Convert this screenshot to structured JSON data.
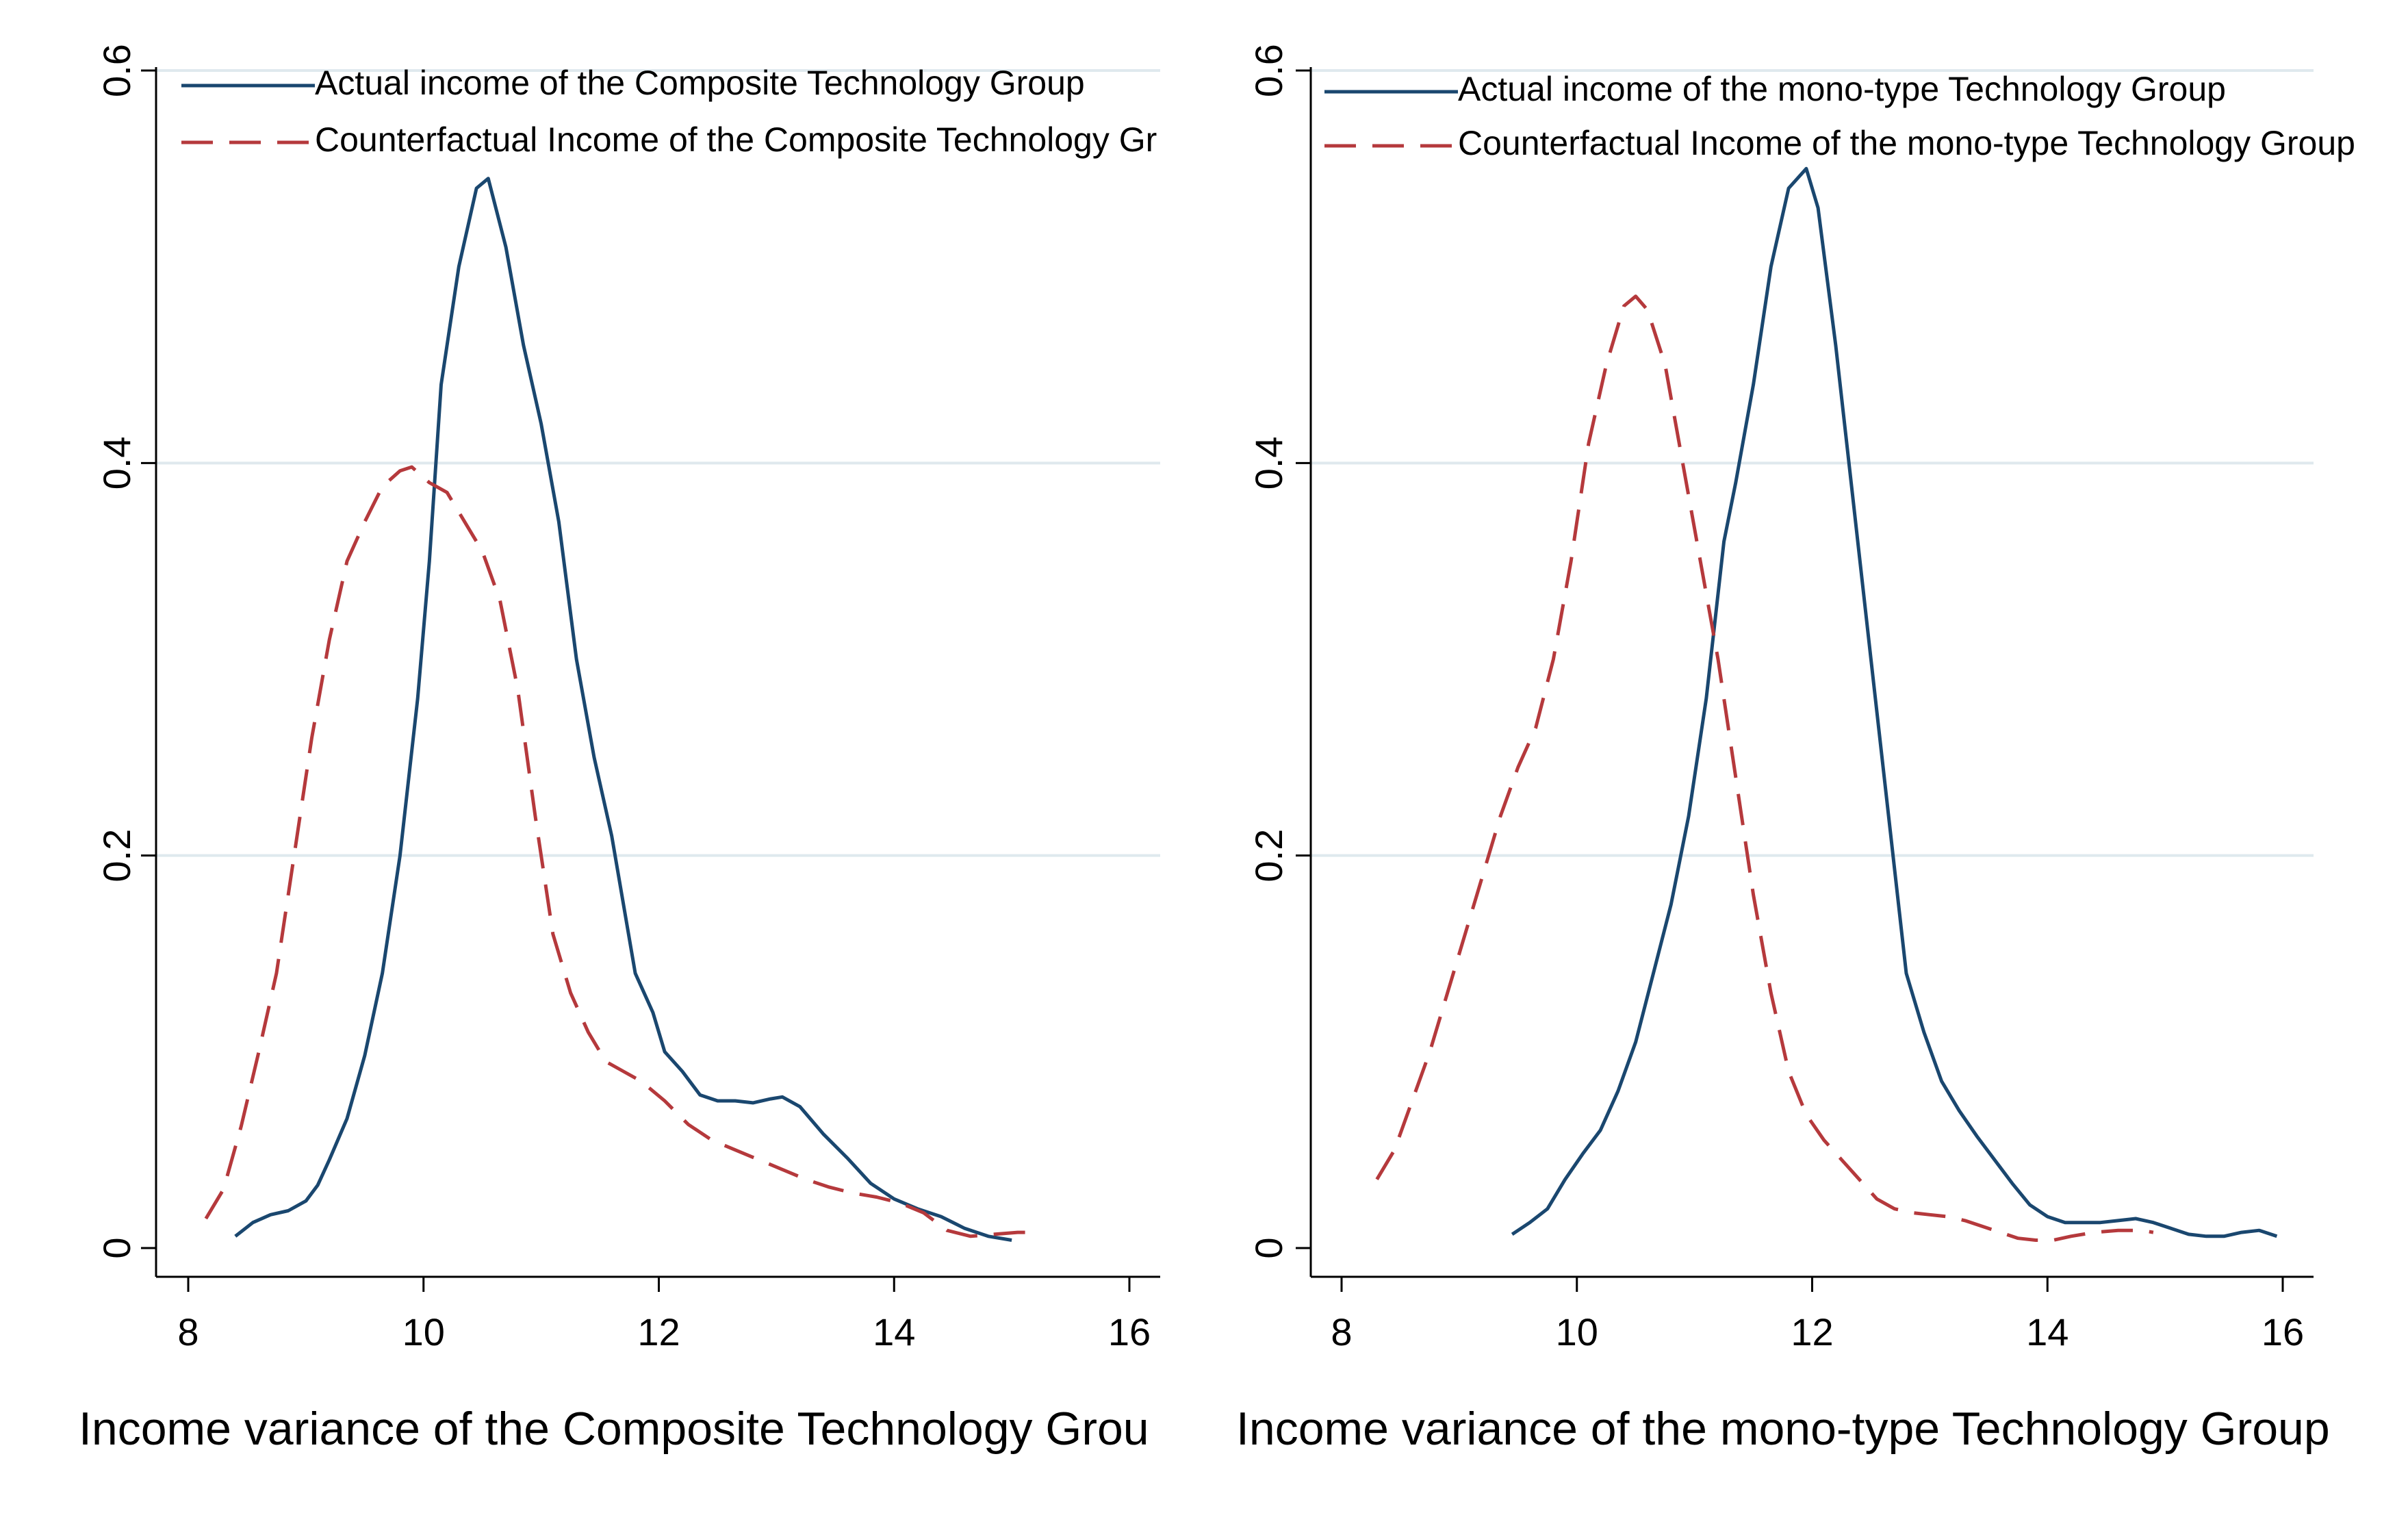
{
  "colors": {
    "actual": "#1a476f",
    "counterfactual": "#b5393c",
    "grid": "#dfe9ee",
    "axis": "#000000",
    "background": "#ffffff"
  },
  "chart_data": [
    {
      "type": "line",
      "xlabel": "Income variance of the Composite Technology Grou",
      "ylabel": "",
      "xlim": [
        8,
        16
      ],
      "ylim": [
        0,
        0.6
      ],
      "xticks": [
        "8",
        "10",
        "12",
        "14",
        "16"
      ],
      "yticks": [
        "0",
        "0.2",
        "0.4",
        "0.6"
      ],
      "grid": true,
      "legend_position": "top-left",
      "series": [
        {
          "name": "Actual income of the Composite Technology Group",
          "style": "solid",
          "x": [
            8.4,
            8.55,
            8.7,
            8.85,
            9.0,
            9.1,
            9.2,
            9.35,
            9.5,
            9.65,
            9.8,
            9.95,
            10.05,
            10.15,
            10.3,
            10.45,
            10.55,
            10.7,
            10.85,
            11.0,
            11.15,
            11.3,
            11.45,
            11.6,
            11.8,
            11.95,
            12.05,
            12.2,
            12.35,
            12.5,
            12.65,
            12.8,
            12.95,
            13.05,
            13.2,
            13.4,
            13.6,
            13.8,
            14.0,
            14.2,
            14.4,
            14.6,
            14.8,
            15.0
          ],
          "y": [
            0.006,
            0.013,
            0.017,
            0.019,
            0.024,
            0.032,
            0.045,
            0.066,
            0.098,
            0.14,
            0.2,
            0.28,
            0.35,
            0.44,
            0.5,
            0.54,
            0.545,
            0.51,
            0.46,
            0.42,
            0.37,
            0.3,
            0.25,
            0.21,
            0.14,
            0.12,
            0.1,
            0.09,
            0.078,
            0.075,
            0.075,
            0.074,
            0.076,
            0.077,
            0.072,
            0.058,
            0.046,
            0.033,
            0.025,
            0.02,
            0.016,
            0.01,
            0.006,
            0.004
          ]
        },
        {
          "name": "Counterfactual Income of the Composite Technology Gr",
          "style": "dashed",
          "x": [
            8.15,
            8.3,
            8.45,
            8.6,
            8.75,
            8.9,
            9.05,
            9.2,
            9.35,
            9.5,
            9.65,
            9.8,
            9.9,
            10.05,
            10.2,
            10.35,
            10.5,
            10.65,
            10.8,
            10.95,
            11.1,
            11.25,
            11.4,
            11.55,
            11.7,
            11.85,
            12.05,
            12.25,
            12.45,
            12.65,
            12.85,
            13.05,
            13.25,
            13.45,
            13.65,
            13.85,
            14.05,
            14.25,
            14.45,
            14.65,
            14.85,
            15.05,
            15.15
          ],
          "y": [
            0.015,
            0.03,
            0.062,
            0.1,
            0.14,
            0.2,
            0.26,
            0.31,
            0.35,
            0.37,
            0.388,
            0.396,
            0.398,
            0.39,
            0.385,
            0.37,
            0.355,
            0.33,
            0.285,
            0.22,
            0.16,
            0.13,
            0.11,
            0.095,
            0.09,
            0.085,
            0.075,
            0.063,
            0.055,
            0.05,
            0.045,
            0.04,
            0.035,
            0.031,
            0.028,
            0.026,
            0.023,
            0.018,
            0.009,
            0.006,
            0.007,
            0.008,
            0.008
          ]
        }
      ]
    },
    {
      "type": "line",
      "xlabel": "Income variance of the mono-type Technology Group",
      "ylabel": "",
      "xlim": [
        8,
        16
      ],
      "ylim": [
        0,
        0.6
      ],
      "xticks": [
        "8",
        "10",
        "12",
        "14",
        "16"
      ],
      "yticks": [
        "0",
        "0.2",
        "0.4",
        "0.6"
      ],
      "grid": true,
      "legend_position": "top-left",
      "series": [
        {
          "name": "Actual income of the mono-type Technology Group",
          "style": "solid",
          "x": [
            9.45,
            9.6,
            9.75,
            9.9,
            10.05,
            10.2,
            10.35,
            10.5,
            10.65,
            10.8,
            10.95,
            11.1,
            11.25,
            11.35,
            11.5,
            11.65,
            11.8,
            11.95,
            12.05,
            12.2,
            12.35,
            12.5,
            12.65,
            12.8,
            12.95,
            13.1,
            13.25,
            13.4,
            13.55,
            13.7,
            13.85,
            14.0,
            14.15,
            14.3,
            14.45,
            14.6,
            14.75,
            14.9,
            15.05,
            15.2,
            15.35,
            15.5,
            15.65,
            15.8,
            15.95
          ],
          "y": [
            0.007,
            0.013,
            0.02,
            0.035,
            0.048,
            0.06,
            0.08,
            0.105,
            0.14,
            0.175,
            0.22,
            0.28,
            0.36,
            0.39,
            0.44,
            0.5,
            0.54,
            0.55,
            0.53,
            0.46,
            0.38,
            0.3,
            0.22,
            0.14,
            0.11,
            0.085,
            0.07,
            0.057,
            0.045,
            0.033,
            0.022,
            0.016,
            0.013,
            0.013,
            0.013,
            0.014,
            0.015,
            0.013,
            0.01,
            0.007,
            0.006,
            0.006,
            0.008,
            0.009,
            0.006
          ]
        },
        {
          "name": "Counterfactual Income of the mono-type Technology Group",
          "style": "dashed",
          "x": [
            8.3,
            8.45,
            8.6,
            8.75,
            8.9,
            9.05,
            9.2,
            9.35,
            9.5,
            9.65,
            9.8,
            9.95,
            10.1,
            10.25,
            10.4,
            10.5,
            10.6,
            10.75,
            10.9,
            11.05,
            11.2,
            11.35,
            11.5,
            11.65,
            11.8,
            11.95,
            12.1,
            12.25,
            12.4,
            12.55,
            12.7,
            12.85,
            13.0,
            13.15,
            13.3,
            13.45,
            13.6,
            13.75,
            13.9,
            14.05,
            14.2,
            14.4,
            14.6,
            14.8,
            14.9
          ],
          "y": [
            0.035,
            0.05,
            0.075,
            0.1,
            0.13,
            0.16,
            0.19,
            0.22,
            0.245,
            0.265,
            0.3,
            0.35,
            0.41,
            0.45,
            0.48,
            0.485,
            0.478,
            0.45,
            0.4,
            0.35,
            0.3,
            0.24,
            0.18,
            0.13,
            0.09,
            0.068,
            0.055,
            0.045,
            0.035,
            0.025,
            0.02,
            0.018,
            0.017,
            0.016,
            0.014,
            0.011,
            0.008,
            0.005,
            0.004,
            0.004,
            0.006,
            0.008,
            0.009,
            0.009,
            0.008
          ]
        }
      ]
    }
  ]
}
